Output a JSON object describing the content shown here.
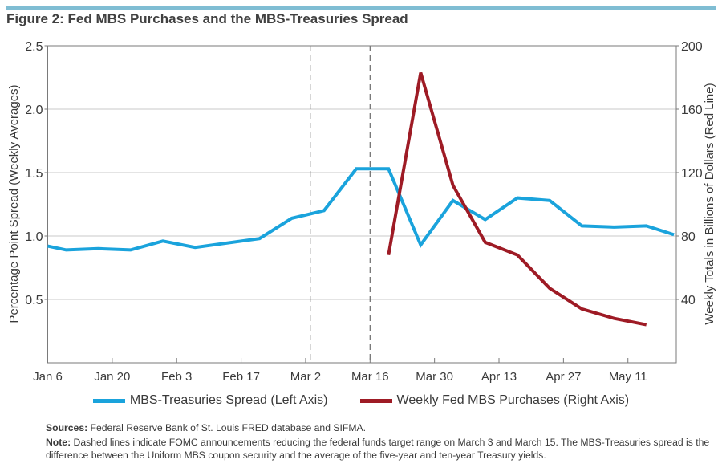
{
  "figure": {
    "title": "Figure 2: Fed MBS Purchases and the MBS-Treasuries Spread",
    "accent_bar_color": "#7fbdd3"
  },
  "chart_data": {
    "type": "line",
    "title": "Figure 2: Fed MBS Purchases and the MBS-Treasuries Spread",
    "xlabel": "",
    "ylabel_left": "Percentage Point Spread (Weekly Averages)",
    "ylabel_right": "Weekly Totals in Billions of Dollars (Red Line)",
    "ylim_left": [
      0,
      2.5
    ],
    "ylim_right": [
      0,
      200
    ],
    "yticks_left": [
      "0.5",
      "1.0",
      "1.5",
      "2.0",
      "2.5"
    ],
    "yticks_left_values": [
      0.5,
      1.0,
      1.5,
      2.0,
      2.5
    ],
    "yticks_right": [
      "40",
      "80",
      "120",
      "160",
      "200"
    ],
    "yticks_right_values": [
      40,
      80,
      120,
      160,
      200
    ],
    "xticks": [
      "Jan 6",
      "Jan 20",
      "Feb 3",
      "Feb 17",
      "Mar 2",
      "Mar 16",
      "Mar 30",
      "Apr 13",
      "Apr 27",
      "May 11"
    ],
    "xticks_day_offset": [
      0,
      14,
      28,
      42,
      56,
      70,
      84,
      98,
      112,
      126
    ],
    "x_range_days": [
      0,
      136.5
    ],
    "grid": "horizontal",
    "vlines": [
      {
        "label": "FOMC March 3",
        "day_offset": 57,
        "style": "dashed"
      },
      {
        "label": "FOMC March 15",
        "day_offset": 70,
        "style": "dashed"
      }
    ],
    "series": [
      {
        "name": "MBS-Treasuries Spread (Left Axis)",
        "axis": "left",
        "color": "#1aa3dc",
        "day_offset": [
          0,
          4,
          11,
          18,
          25,
          32,
          46,
          53,
          60,
          67,
          74,
          81,
          88,
          95,
          102,
          109,
          116,
          123,
          130,
          136
        ],
        "values": [
          0.92,
          0.89,
          0.9,
          0.89,
          0.96,
          0.91,
          0.98,
          1.14,
          1.2,
          1.53,
          1.53,
          0.93,
          1.28,
          1.13,
          1.3,
          1.28,
          1.08,
          1.07,
          1.08,
          1.01
        ]
      },
      {
        "name": "Weekly Fed MBS Purchases (Right Axis)",
        "axis": "right",
        "color": "#9e1b25",
        "day_offset": [
          74,
          81,
          88,
          95,
          102,
          109,
          116,
          123,
          130
        ],
        "values": [
          68,
          183,
          112,
          76,
          68,
          47,
          34,
          28,
          24
        ]
      }
    ],
    "legend_position": "bottom-center"
  },
  "legend": [
    {
      "label": "MBS-Treasuries Spread (Left Axis)",
      "color": "#1aa3dc"
    },
    {
      "label": "Weekly Fed MBS Purchases (Right Axis)",
      "color": "#9e1b25"
    }
  ],
  "notes": {
    "sources_label": "Sources:",
    "sources_text": " Federal Reserve Bank of St. Louis FRED database and SIFMA.",
    "note_label": "Note:",
    "note_text": " Dashed lines indicate FOMC announcements reducing the federal funds target range on March 3 and March 15. The MBS-Treasuries spread is the difference between the Uniform MBS coupon security and the average of the five-year and ten-year Treasury yields."
  }
}
